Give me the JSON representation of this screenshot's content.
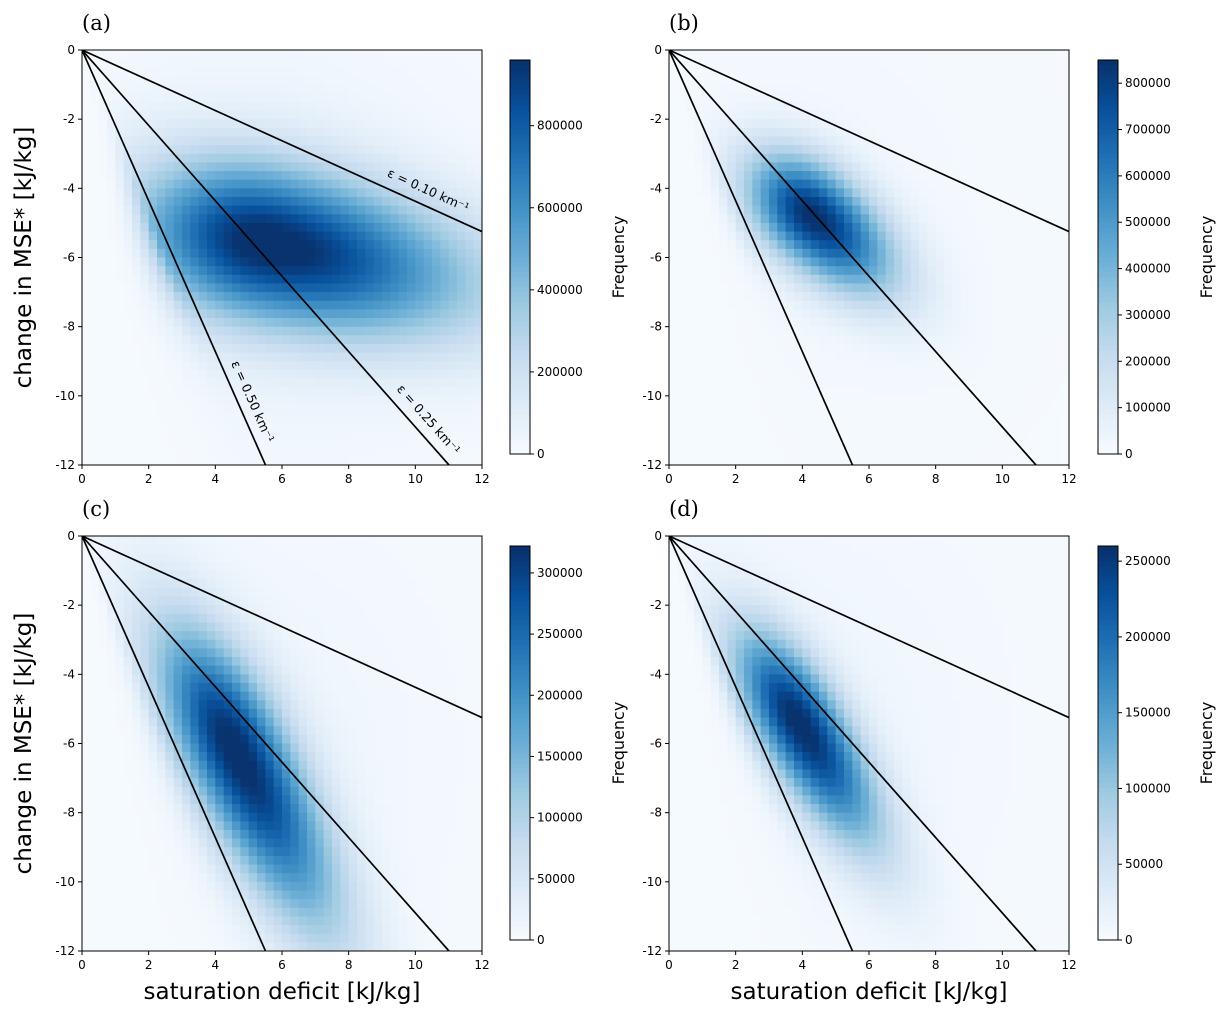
{
  "chart_data": [
    {
      "type": "heatmap",
      "panel_label": "(a)",
      "xlabel": "",
      "ylabel": "change in MSE* [kJ/kg]",
      "xlim": [
        0,
        12
      ],
      "ylim": [
        -12,
        0
      ],
      "xticks": [
        "0",
        "2",
        "4",
        "6",
        "8",
        "10",
        "12"
      ],
      "yticks": [
        "0",
        "-2",
        "-4",
        "-6",
        "-8",
        "-10",
        "-12"
      ],
      "colormap": "Blues",
      "colorbar": {
        "label": "Frequency",
        "range": [
          0,
          960000
        ],
        "ticks": [
          "0",
          "200000",
          "400000",
          "600000",
          "800000"
        ]
      },
      "peak": {
        "x": 5.5,
        "y": -5.6,
        "value": 960000
      },
      "lines": [
        {
          "epsilon": 0.1,
          "slope": -0.4375,
          "label": "ε = 0.10 km⁻¹"
        },
        {
          "epsilon": 0.25,
          "slope": -1.09,
          "label": "ε = 0.25 km⁻¹"
        },
        {
          "epsilon": 0.5,
          "slope": -2.18,
          "label": "ε = 0.50 km⁻¹"
        }
      ]
    },
    {
      "type": "heatmap",
      "panel_label": "(b)",
      "xlabel": "",
      "ylabel": "",
      "xlim": [
        0,
        12
      ],
      "ylim": [
        -12,
        0
      ],
      "xticks": [
        "0",
        "2",
        "4",
        "6",
        "8",
        "10",
        "12"
      ],
      "yticks": [
        "0",
        "-2",
        "-4",
        "-6",
        "-8",
        "-10",
        "-12"
      ],
      "colormap": "Blues",
      "colorbar": {
        "label": "Frequency",
        "range": [
          0,
          850000
        ],
        "ticks": [
          "0",
          "100000",
          "200000",
          "300000",
          "400000",
          "500000",
          "600000",
          "700000",
          "800000"
        ]
      },
      "peak": {
        "x": 4.3,
        "y": -4.8,
        "value": 850000
      },
      "lines": [
        {
          "epsilon": 0.1,
          "slope": -0.4375
        },
        {
          "epsilon": 0.25,
          "slope": -1.09
        },
        {
          "epsilon": 0.5,
          "slope": -2.18
        }
      ]
    },
    {
      "type": "heatmap",
      "panel_label": "(c)",
      "xlabel": "saturation deficit [kJ/kg]",
      "ylabel": "change in MSE* [kJ/kg]",
      "xlim": [
        0,
        12
      ],
      "ylim": [
        -12,
        0
      ],
      "xticks": [
        "0",
        "2",
        "4",
        "6",
        "8",
        "10",
        "12"
      ],
      "yticks": [
        "0",
        "-2",
        "-4",
        "-6",
        "-8",
        "-10",
        "-12"
      ],
      "colormap": "Blues",
      "colorbar": {
        "label": "Frequency",
        "range": [
          0,
          322000
        ],
        "ticks": [
          "0",
          "50000",
          "100000",
          "150000",
          "200000",
          "250000",
          "300000"
        ]
      },
      "peak": {
        "x": 4.6,
        "y": -6.2,
        "value": 322000
      },
      "lines": [
        {
          "epsilon": 0.1,
          "slope": -0.4375
        },
        {
          "epsilon": 0.25,
          "slope": -1.09
        },
        {
          "epsilon": 0.5,
          "slope": -2.18
        }
      ]
    },
    {
      "type": "heatmap",
      "panel_label": "(d)",
      "xlabel": "saturation deficit [kJ/kg]",
      "ylabel": "",
      "xlim": [
        0,
        12
      ],
      "ylim": [
        -12,
        0
      ],
      "xticks": [
        "0",
        "2",
        "4",
        "6",
        "8",
        "10",
        "12"
      ],
      "yticks": [
        "0",
        "-2",
        "-4",
        "-6",
        "-8",
        "-10",
        "-12"
      ],
      "colormap": "Blues",
      "colorbar": {
        "label": "Frequency",
        "range": [
          0,
          260000
        ],
        "ticks": [
          "0",
          "50000",
          "100000",
          "150000",
          "200000",
          "250000"
        ]
      },
      "peak": {
        "x": 3.9,
        "y": -5.4,
        "value": 260000
      },
      "lines": [
        {
          "epsilon": 0.1,
          "slope": -0.4375
        },
        {
          "epsilon": 0.25,
          "slope": -1.09
        },
        {
          "epsilon": 0.5,
          "slope": -2.18
        }
      ]
    }
  ]
}
